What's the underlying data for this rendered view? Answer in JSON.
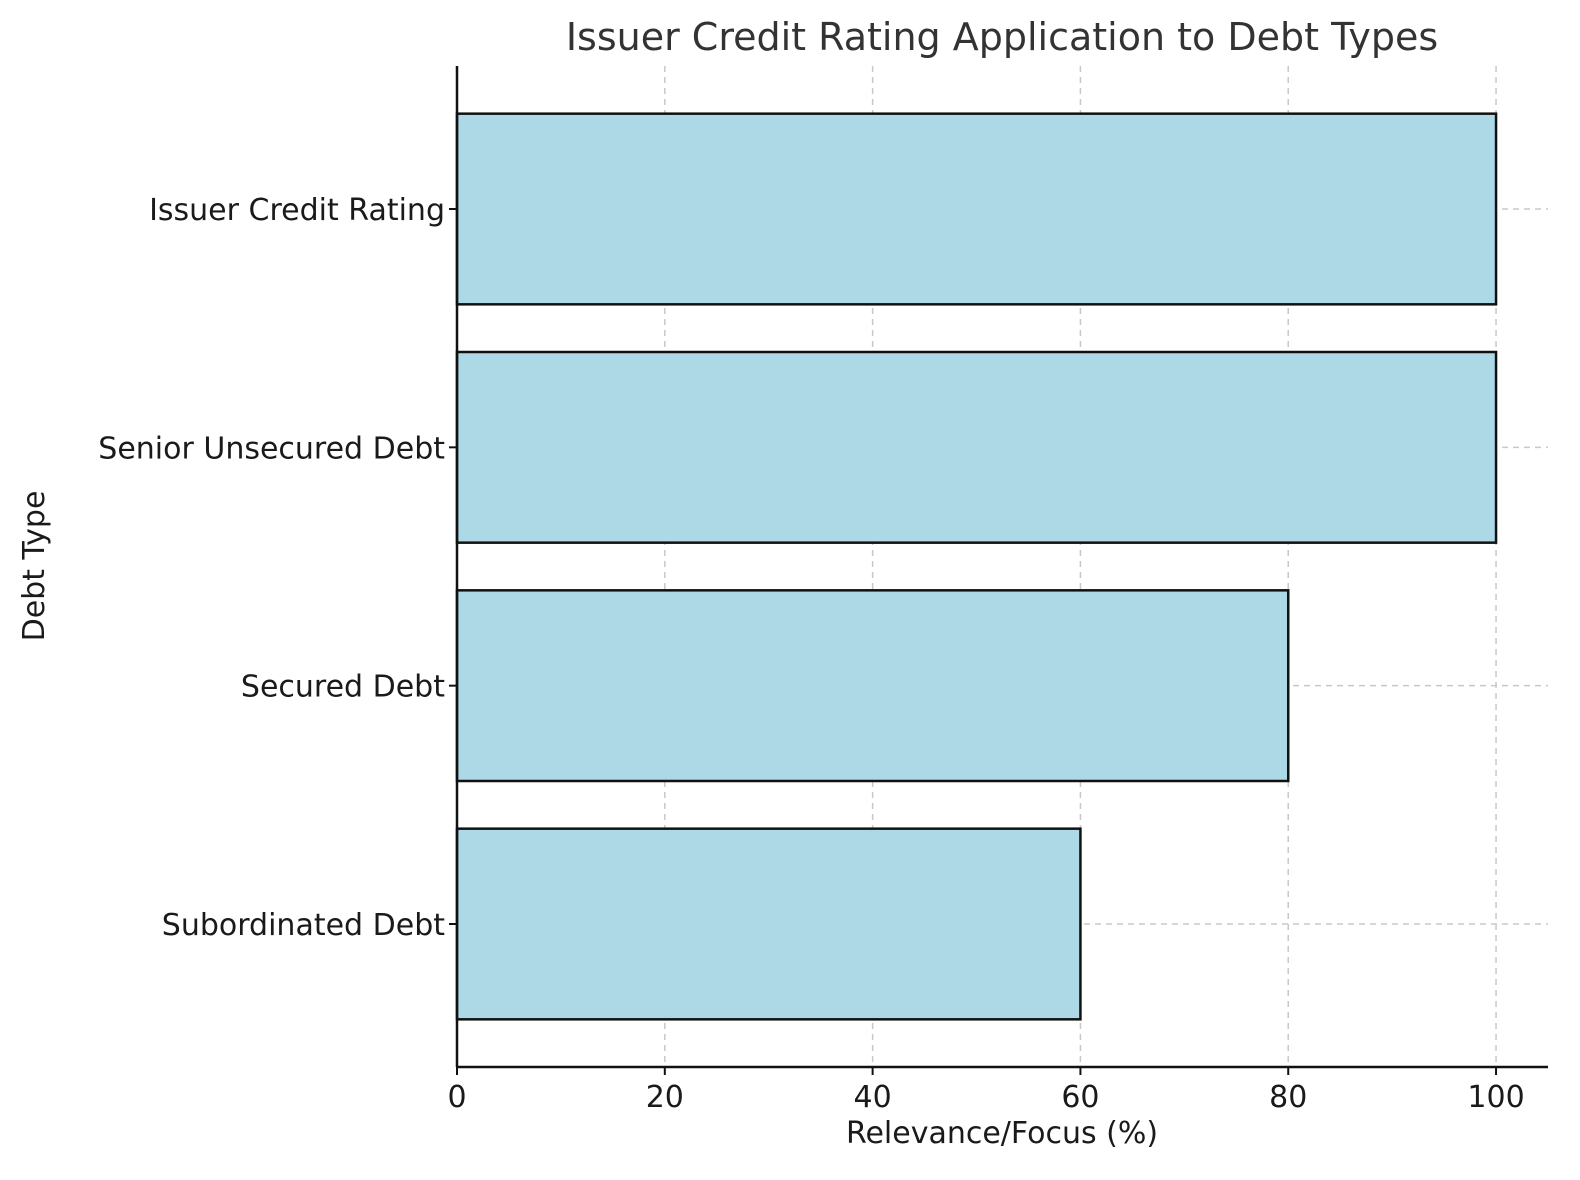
{
  "chart_data": {
    "type": "bar",
    "orientation": "horizontal",
    "title": "Issuer Credit Rating Application to Debt Types",
    "xlabel": "Relevance/Focus (%)",
    "ylabel": "Debt Type",
    "categories": [
      "Issuer Credit Rating",
      "Senior Unsecured Debt",
      "Secured Debt",
      "Subordinated Debt"
    ],
    "values": [
      100,
      100,
      80,
      60
    ],
    "xlim": [
      0,
      105
    ],
    "xticks": [
      0,
      20,
      40,
      60,
      80,
      100
    ],
    "grid": true,
    "legend": "none",
    "bar_color": "#add8e6",
    "edge_color": "#111111"
  }
}
